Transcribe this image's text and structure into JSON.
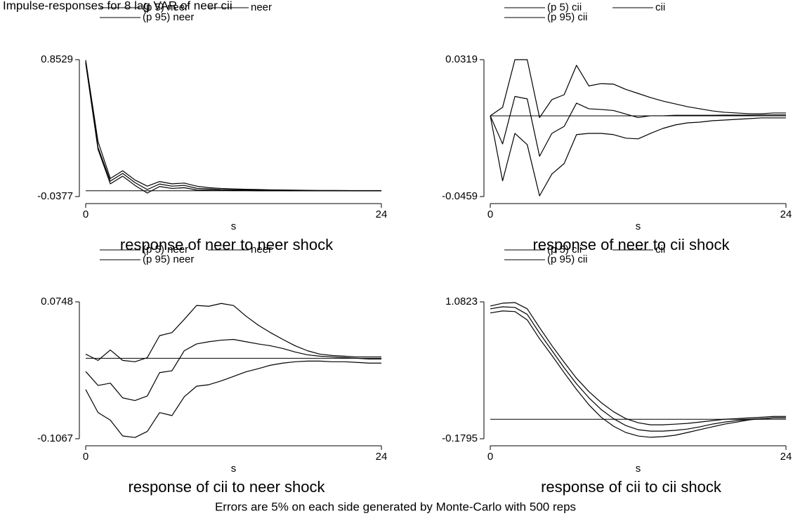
{
  "title": "Impulse-responses for 8 lag VAR of neer cii",
  "note": "Errors are 5% on each side generated by Monte-Carlo with 500 reps",
  "chart_data": [
    {
      "type": "line",
      "title": "response of neer to neer shock",
      "xlabel": "s",
      "x": [
        0,
        1,
        2,
        3,
        4,
        5,
        6,
        7,
        8,
        9,
        10,
        11,
        12,
        13,
        14,
        15,
        16,
        17,
        18,
        19,
        20,
        21,
        22,
        23,
        24
      ],
      "xlim": [
        0,
        24
      ],
      "xticks": [
        0,
        24
      ],
      "ylim": [
        -0.0377,
        0.8529
      ],
      "yticks": [
        -0.0377,
        0.8529
      ],
      "series": [
        {
          "name": "(p 5) neer",
          "color": "#000000",
          "values": [
            0.83,
            0.27,
            0.045,
            0.095,
            0.035,
            -0.015,
            0.028,
            0.015,
            0.02,
            0.005,
            0.004,
            0.002,
            0.001,
            0.001,
            0,
            0,
            0,
            0,
            0,
            0,
            0,
            0,
            0,
            0,
            0
          ]
        },
        {
          "name": "neer",
          "color": "#000000",
          "values": [
            0.84,
            0.282,
            0.063,
            0.113,
            0.053,
            0.008,
            0.044,
            0.03,
            0.035,
            0.016,
            0.012,
            0.008,
            0.006,
            0.005,
            0.004,
            0.003,
            0.002,
            0.002,
            0.001,
            0.001,
            0.001,
            0.001,
            0,
            0,
            0
          ]
        },
        {
          "name": "(p 95) neer",
          "color": "#000000",
          "values": [
            0.85,
            0.32,
            0.08,
            0.13,
            0.07,
            0.03,
            0.06,
            0.045,
            0.05,
            0.03,
            0.02,
            0.015,
            0.012,
            0.01,
            0.008,
            0.006,
            0.005,
            0.004,
            0.003,
            0.002,
            0.002,
            0.001,
            0.001,
            0.001,
            0.001
          ]
        }
      ]
    },
    {
      "type": "line",
      "title": "response of neer to cii shock",
      "xlabel": "s",
      "x": [
        0,
        1,
        2,
        3,
        4,
        5,
        6,
        7,
        8,
        9,
        10,
        11,
        12,
        13,
        14,
        15,
        16,
        17,
        18,
        19,
        20,
        21,
        22,
        23,
        24
      ],
      "xlim": [
        0,
        24
      ],
      "xticks": [
        0,
        24
      ],
      "ylim": [
        -0.0459,
        0.0319
      ],
      "yticks": [
        -0.0459,
        0.0319
      ],
      "series": [
        {
          "name": "(p 5) cii",
          "color": "#000000",
          "values": [
            0,
            -0.037,
            -0.01,
            -0.0164,
            -0.0455,
            -0.0331,
            -0.0271,
            -0.0107,
            -0.01,
            -0.01,
            -0.0107,
            -0.0127,
            -0.0131,
            -0.01,
            -0.0072,
            -0.0052,
            -0.004,
            -0.0036,
            -0.0028,
            -0.0024,
            -0.002,
            -0.0016,
            -0.0012,
            -0.0012,
            -0.0012
          ]
        },
        {
          "name": "cii",
          "color": "#000000",
          "values": [
            0,
            -0.016,
            0.011,
            0.0096,
            -0.023,
            -0.01,
            -0.006,
            0.0072,
            0.004,
            0.0036,
            0.003,
            0.001,
            -0.001,
            0,
            0,
            0.0003,
            0.0003,
            0.0003,
            0.0003,
            0.0004,
            0.0004,
            0.0004,
            0.0005,
            0.0005,
            0.0005
          ]
        },
        {
          "name": "(p 95) cii",
          "color": "#000000",
          "values": [
            0,
            0.0048,
            0.0319,
            0.0319,
            -0.001,
            0.0092,
            0.012,
            0.0287,
            0.017,
            0.0183,
            0.018,
            0.015,
            0.0127,
            0.0104,
            0.0084,
            0.0068,
            0.0052,
            0.004,
            0.0028,
            0.002,
            0.0016,
            0.0012,
            0.0012,
            0.0016,
            0.0016
          ]
        }
      ]
    },
    {
      "type": "line",
      "title": "response of cii to neer shock",
      "xlabel": "s",
      "x": [
        0,
        1,
        2,
        3,
        4,
        5,
        6,
        7,
        8,
        9,
        10,
        11,
        12,
        13,
        14,
        15,
        16,
        17,
        18,
        19,
        20,
        21,
        22,
        23,
        24
      ],
      "xlim": [
        0,
        24
      ],
      "xticks": [
        0,
        24
      ],
      "ylim": [
        -0.1067,
        0.0748
      ],
      "yticks": [
        -0.1067,
        0.0748
      ],
      "series": [
        {
          "name": "(p 5) neer",
          "color": "#000000",
          "values": [
            -0.0415,
            -0.0719,
            -0.082,
            -0.103,
            -0.105,
            -0.097,
            -0.072,
            -0.076,
            -0.051,
            -0.037,
            -0.035,
            -0.03,
            -0.024,
            -0.018,
            -0.0138,
            -0.0092,
            -0.0064,
            -0.0046,
            -0.0037,
            -0.0037,
            -0.0046,
            -0.0046,
            -0.0055,
            -0.0064,
            -0.0064
          ]
        },
        {
          "name": "neer",
          "color": "#000000",
          "values": [
            -0.0175,
            -0.036,
            -0.033,
            -0.0525,
            -0.056,
            -0.05,
            -0.019,
            -0.0166,
            0.01,
            0.019,
            0.022,
            0.024,
            0.025,
            0.022,
            0.019,
            0.0166,
            0.013,
            0.0083,
            0.0046,
            0.0028,
            0.0018,
            0.0009,
            0,
            -0.001,
            -0.001
          ]
        },
        {
          "name": "(p 95) neer",
          "color": "#000000",
          "values": [
            0.0055,
            -0.0028,
            0.011,
            -0.0028,
            -0.0046,
            0.0009,
            0.03,
            0.034,
            0.0516,
            0.07,
            0.069,
            0.0727,
            0.07,
            0.056,
            0.044,
            0.034,
            0.025,
            0.0166,
            0.01,
            0.0055,
            0.0037,
            0.0028,
            0.0018,
            0.0018,
            0.0018
          ]
        }
      ]
    },
    {
      "type": "line",
      "title": "response of cii to cii shock",
      "xlabel": "s",
      "x": [
        0,
        1,
        2,
        3,
        4,
        5,
        6,
        7,
        8,
        9,
        10,
        11,
        12,
        13,
        14,
        15,
        16,
        17,
        18,
        19,
        20,
        21,
        22,
        23,
        24
      ],
      "xlim": [
        0,
        24
      ],
      "xticks": [
        0,
        24
      ],
      "ylim": [
        -0.1795,
        1.0823
      ],
      "yticks": [
        -0.1795,
        1.0823
      ],
      "series": [
        {
          "name": "(p 5) cii",
          "color": "#000000",
          "values": [
            0.98,
            0.999,
            0.993,
            0.916,
            0.743,
            0.589,
            0.429,
            0.275,
            0.134,
            0.019,
            -0.064,
            -0.122,
            -0.154,
            -0.166,
            -0.16,
            -0.147,
            -0.122,
            -0.096,
            -0.07,
            -0.045,
            -0.026,
            -0.006,
            0.006,
            0.013,
            0.013
          ]
        },
        {
          "name": "cii",
          "color": "#000000",
          "values": [
            1.018,
            1.037,
            1.031,
            0.967,
            0.794,
            0.634,
            0.474,
            0.327,
            0.199,
            0.09,
            0.006,
            -0.058,
            -0.096,
            -0.109,
            -0.109,
            -0.102,
            -0.09,
            -0.07,
            -0.045,
            -0.026,
            -0.013,
            0,
            0.006,
            0.013,
            0.013
          ]
        },
        {
          "name": "(p 95) cii",
          "color": "#000000",
          "values": [
            1.044,
            1.07,
            1.076,
            1.018,
            0.845,
            0.679,
            0.525,
            0.378,
            0.256,
            0.154,
            0.07,
            0.006,
            -0.032,
            -0.051,
            -0.051,
            -0.045,
            -0.038,
            -0.026,
            -0.013,
            0,
            0.006,
            0.013,
            0.019,
            0.026,
            0.026
          ]
        }
      ]
    }
  ]
}
